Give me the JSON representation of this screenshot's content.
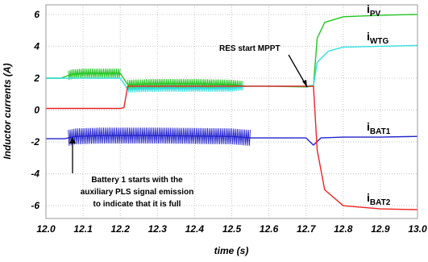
{
  "chart_data": {
    "type": "line",
    "xlabel": "time (s)",
    "ylabel": "Inductor currents (A)",
    "xlim": [
      12.0,
      13.0
    ],
    "ylim": [
      -6.8,
      6.6
    ],
    "xticks": [
      "12.0",
      "12.1",
      "12.2",
      "12.3",
      "12.4",
      "12.5",
      "12.6",
      "12.7",
      "12.8",
      "12.9",
      "13.0"
    ],
    "yticks": [
      "6",
      "4",
      "2",
      "0",
      "-2",
      "-4",
      "-6"
    ],
    "grid": true,
    "series": [
      {
        "name": "iPV",
        "label_main": "i",
        "label_sub": "PV",
        "color": "#22c422",
        "points": [
          [
            12.0,
            2.0
          ],
          [
            12.04,
            2.0
          ],
          [
            12.07,
            2.25
          ],
          [
            12.1,
            2.3
          ],
          [
            12.2,
            2.3
          ],
          [
            12.22,
            1.6
          ],
          [
            12.3,
            1.65
          ],
          [
            12.4,
            1.65
          ],
          [
            12.5,
            1.6
          ],
          [
            12.54,
            1.5
          ],
          [
            12.6,
            1.5
          ],
          [
            12.7,
            1.45
          ],
          [
            12.72,
            1.5
          ],
          [
            12.73,
            4.5
          ],
          [
            12.75,
            5.5
          ],
          [
            12.8,
            5.85
          ],
          [
            12.9,
            5.95
          ],
          [
            13.0,
            6.0
          ]
        ]
      },
      {
        "name": "iWTG",
        "label_main": "i",
        "label_sub": "WTG",
        "color": "#33e0e0",
        "points": [
          [
            12.0,
            2.0
          ],
          [
            12.04,
            2.0
          ],
          [
            12.07,
            2.0
          ],
          [
            12.2,
            2.0
          ],
          [
            12.22,
            1.3
          ],
          [
            12.3,
            1.35
          ],
          [
            12.5,
            1.35
          ],
          [
            12.54,
            1.5
          ],
          [
            12.6,
            1.5
          ],
          [
            12.7,
            1.5
          ],
          [
            12.72,
            1.55
          ],
          [
            12.73,
            3.0
          ],
          [
            12.76,
            3.7
          ],
          [
            12.8,
            3.95
          ],
          [
            12.9,
            4.0
          ],
          [
            13.0,
            4.05
          ]
        ]
      },
      {
        "name": "iBAT1",
        "label_main": "i",
        "label_sub": "BAT1",
        "color": "#2222cc",
        "points": [
          [
            12.0,
            -1.8
          ],
          [
            12.05,
            -1.8
          ],
          [
            12.08,
            -1.65
          ],
          [
            12.15,
            -1.6
          ],
          [
            12.3,
            -1.6
          ],
          [
            12.5,
            -1.65
          ],
          [
            12.55,
            -1.75
          ],
          [
            12.6,
            -1.75
          ],
          [
            12.7,
            -1.75
          ],
          [
            12.72,
            -2.2
          ],
          [
            12.74,
            -1.75
          ],
          [
            12.8,
            -1.7
          ],
          [
            12.9,
            -1.7
          ],
          [
            13.0,
            -1.65
          ]
        ]
      },
      {
        "name": "iBAT2",
        "label_main": "i",
        "label_sub": "BAT2",
        "color": "#ee2222",
        "points": [
          [
            12.0,
            0.1
          ],
          [
            12.2,
            0.1
          ],
          [
            12.21,
            0.15
          ],
          [
            12.22,
            1.5
          ],
          [
            12.3,
            1.5
          ],
          [
            12.5,
            1.5
          ],
          [
            12.6,
            1.5
          ],
          [
            12.7,
            1.5
          ],
          [
            12.72,
            1.5
          ],
          [
            12.73,
            -2.5
          ],
          [
            12.75,
            -5.0
          ],
          [
            12.8,
            -6.0
          ],
          [
            12.9,
            -6.2
          ],
          [
            13.0,
            -6.25
          ]
        ]
      }
    ],
    "oscillation_bands": [
      {
        "series": "iBAT1",
        "x_start": 12.06,
        "x_end": 12.55,
        "amplitude": 0.5
      },
      {
        "series": "iPV",
        "x_start": 12.06,
        "x_end": 12.2,
        "amplitude": 0.3
      },
      {
        "series": "iPV",
        "x_start": 12.22,
        "x_end": 12.53,
        "amplitude": 0.3
      },
      {
        "series": "iWTG",
        "x_start": 12.22,
        "x_end": 12.53,
        "amplitude": 0.2
      }
    ],
    "annotations": [
      {
        "id": "mppt",
        "text": "RES start MPPT"
      },
      {
        "id": "battery",
        "lines": [
          "Battery 1 starts with the",
          "auxiliary PLS signal emission",
          "to indicate that it is full"
        ]
      }
    ]
  }
}
